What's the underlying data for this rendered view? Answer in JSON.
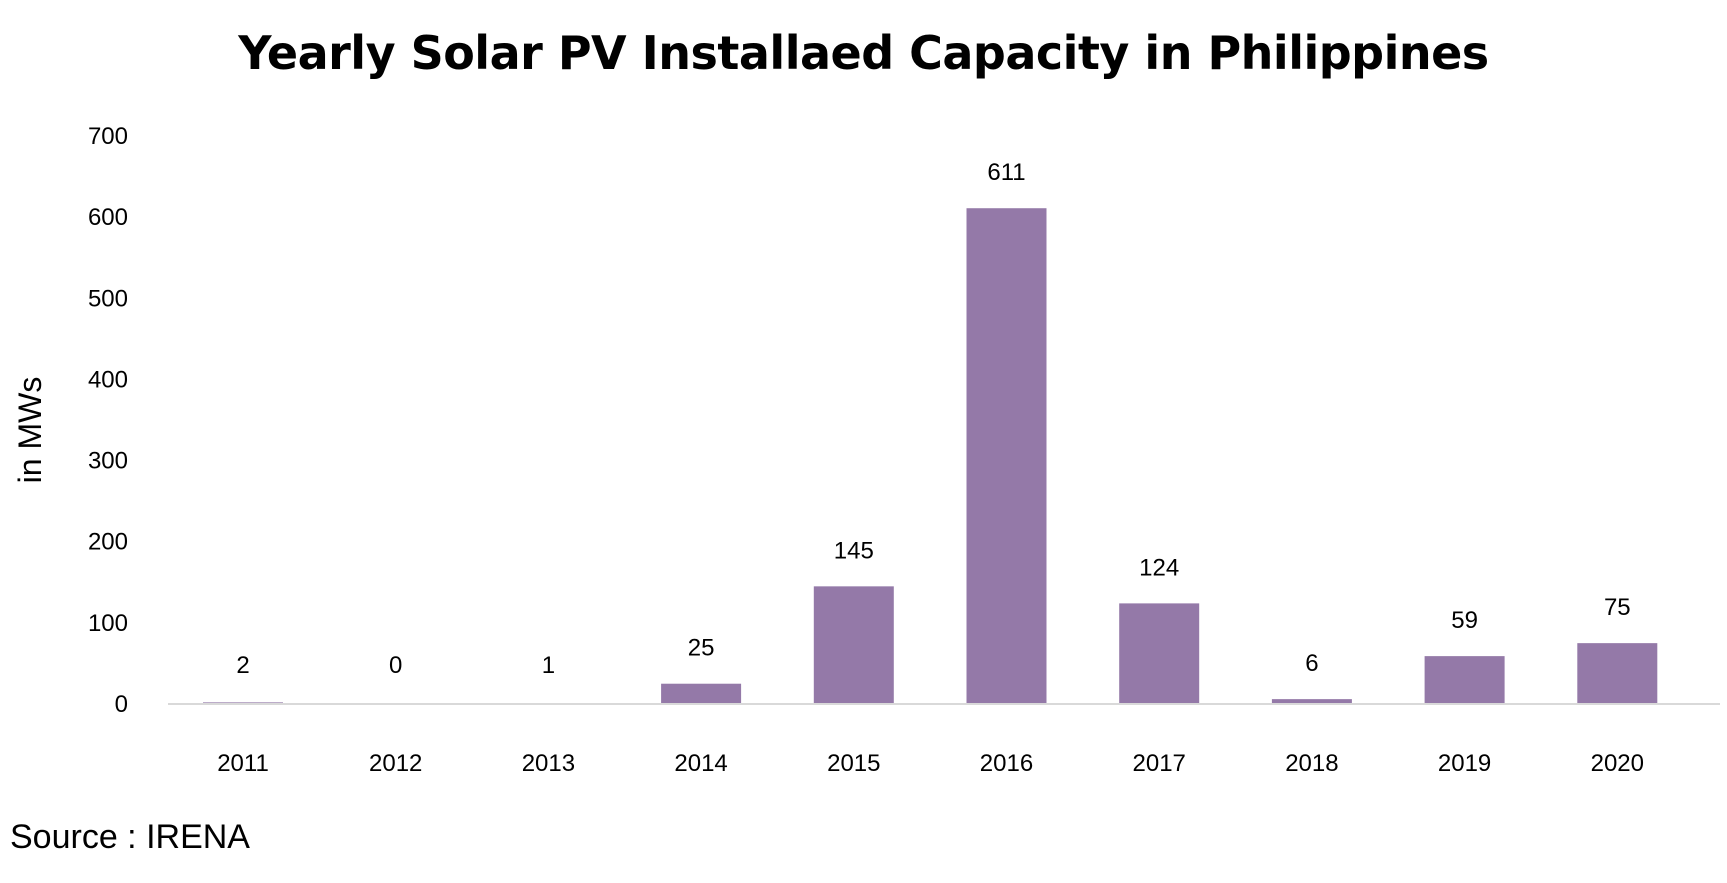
{
  "chart_data": {
    "type": "bar",
    "title": "Yearly Solar PV Installaed Capacity in Philippines",
    "xlabel": "",
    "ylabel": "in MWs",
    "categories": [
      "2011",
      "2012",
      "2013",
      "2014",
      "2015",
      "2016",
      "2017",
      "2018",
      "2019",
      "2020"
    ],
    "values": [
      2,
      0,
      1,
      25,
      145,
      611,
      124,
      6,
      59,
      75
    ],
    "data_labels": [
      "2",
      "0",
      "1",
      "25",
      "145",
      "611",
      "124",
      "6",
      "59",
      "75"
    ],
    "ylim": [
      0,
      700
    ],
    "yticks": [
      0,
      100,
      200,
      300,
      400,
      500,
      600,
      700
    ],
    "grid": false,
    "legend": "none",
    "bar_color": "#9479A8",
    "axis_color": "#D9D9D9",
    "source": "Source : IRENA"
  }
}
